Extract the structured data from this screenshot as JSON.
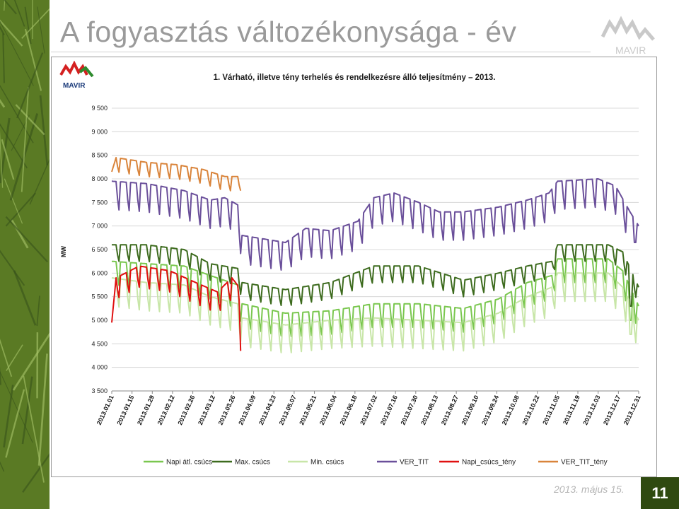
{
  "slide": {
    "title": "A fogyasztás változékonysága - év",
    "date": "2013. május 15.",
    "number": "11",
    "logo_text": "MAVIR"
  },
  "colors": {
    "panel_green": "#5a7a24",
    "napi_atl": "#7ac74f",
    "max": "#3d6b1e",
    "min": "#c8e6a8",
    "ver": "#6a4f9a",
    "napi_teny": "#e01010",
    "ver_teny": "#d9843b",
    "logo_red": "#d42020",
    "logo_green": "#2e8b2e"
  },
  "chart_data": {
    "type": "line",
    "title": "1. Várható, illetve tény terhelés és rendelkezésre álló teljesítmény – 2013.",
    "ylabel": "MW",
    "xlabel": "",
    "ylim": [
      3500,
      9500
    ],
    "yticks": [
      3500,
      4000,
      4500,
      5000,
      5500,
      6000,
      6500,
      7000,
      7500,
      8000,
      8500,
      9000,
      9500
    ],
    "ytick_labels": [
      "3 500",
      "4 000",
      "4 500",
      "5 000",
      "5 500",
      "6 000",
      "6 500",
      "7 000",
      "7 500",
      "8 000",
      "8 500",
      "9 000",
      "9 500"
    ],
    "x_start": "2013.01.01",
    "x_end": "2013.12.31",
    "xtick_labels": [
      "2013.01.01",
      "2013.01.15",
      "2013.01.29",
      "2013.02.12",
      "2013.02.26",
      "2013.03.12",
      "2013.03.26",
      "2013.04.09",
      "2013.04.23",
      "2013.05.07",
      "2013.05.21",
      "2013.06.04",
      "2013.06.18",
      "2013.07.02",
      "2013.07.16",
      "2013.07.30",
      "2013.08.13",
      "2013.08.27",
      "2013.09.10",
      "2013.09.24",
      "2013.10.08",
      "2013.10.22",
      "2013.11.05",
      "2013.11.19",
      "2013.12.03",
      "2013.12.17",
      "2013.12.31"
    ],
    "legend_position": "bottom",
    "grid": true,
    "series": [
      {
        "name": "Napi átl. csúcs",
        "color": "#7ac74f",
        "anchors": [
          [
            "2013.01.01",
            6250
          ],
          [
            "2013.01.25",
            6200
          ],
          [
            "2013.02.20",
            6150
          ],
          [
            "2013.03.10",
            5950
          ],
          [
            "2013.03.29",
            5750
          ],
          [
            "2013.04.01",
            5350
          ],
          [
            "2013.05.01",
            5150
          ],
          [
            "2013.06.01",
            5200
          ],
          [
            "2013.07.01",
            5350
          ],
          [
            "2013.08.01",
            5350
          ],
          [
            "2013.09.01",
            5250
          ],
          [
            "2013.09.25",
            5450
          ],
          [
            "2013.10.15",
            5800
          ],
          [
            "2013.11.01",
            5950
          ],
          [
            "2013.11.05",
            6300
          ],
          [
            "2013.12.10",
            6300
          ],
          [
            "2013.12.20",
            6050
          ],
          [
            "2013.12.31",
            5300
          ]
        ],
        "weekend_drop": 500,
        "holiday_dips": [
          [
            "2013.12.25",
            5000
          ],
          [
            "2013.12.26",
            5000
          ]
        ]
      },
      {
        "name": "Max. csúcs",
        "color": "#3d6b1e",
        "anchors": [
          [
            "2013.01.01",
            6600
          ],
          [
            "2013.01.25",
            6600
          ],
          [
            "2013.02.20",
            6500
          ],
          [
            "2013.03.10",
            6200
          ],
          [
            "2013.03.29",
            6100
          ],
          [
            "2013.04.01",
            5800
          ],
          [
            "2013.05.01",
            5650
          ],
          [
            "2013.06.01",
            5800
          ],
          [
            "2013.07.01",
            6150
          ],
          [
            "2013.08.01",
            6150
          ],
          [
            "2013.09.01",
            5850
          ],
          [
            "2013.09.25",
            6000
          ],
          [
            "2013.10.15",
            6150
          ],
          [
            "2013.11.01",
            6250
          ],
          [
            "2013.11.05",
            6600
          ],
          [
            "2013.12.10",
            6600
          ],
          [
            "2013.12.20",
            6450
          ],
          [
            "2013.12.31",
            5700
          ]
        ],
        "weekend_drop": 350,
        "holiday_dips": [
          [
            "2013.12.25",
            5300
          ],
          [
            "2013.12.26",
            5300
          ]
        ]
      },
      {
        "name": "Min. csúcs",
        "color": "#c8e6a8",
        "anchors": [
          [
            "2013.01.01",
            5900
          ],
          [
            "2013.01.25",
            5800
          ],
          [
            "2013.02.20",
            5750
          ],
          [
            "2013.03.10",
            5500
          ],
          [
            "2013.03.29",
            5350
          ],
          [
            "2013.04.01",
            5050
          ],
          [
            "2013.05.01",
            4900
          ],
          [
            "2013.06.01",
            5000
          ],
          [
            "2013.07.01",
            5050
          ],
          [
            "2013.08.01",
            5000
          ],
          [
            "2013.09.01",
            4950
          ],
          [
            "2013.09.25",
            5150
          ],
          [
            "2013.10.15",
            5500
          ],
          [
            "2013.11.01",
            5700
          ],
          [
            "2013.11.05",
            6000
          ],
          [
            "2013.12.10",
            6000
          ],
          [
            "2013.12.20",
            5700
          ],
          [
            "2013.12.31",
            5000
          ]
        ],
        "weekend_drop": 600,
        "holiday_dips": [
          [
            "2013.12.25",
            4700
          ],
          [
            "2013.12.26",
            4700
          ]
        ]
      },
      {
        "name": "VER_TIT",
        "color": "#6a4f9a",
        "anchors": [
          [
            "2013.01.01",
            7950
          ],
          [
            "2013.01.25",
            7900
          ],
          [
            "2013.02.20",
            7750
          ],
          [
            "2013.03.10",
            7550
          ],
          [
            "2013.03.20",
            7600
          ],
          [
            "2013.03.29",
            7450
          ],
          [
            "2013.04.01",
            6800
          ],
          [
            "2013.05.01",
            6650
          ],
          [
            "2013.05.15",
            6950
          ],
          [
            "2013.06.01",
            6900
          ],
          [
            "2013.06.20",
            7100
          ],
          [
            "2013.07.01",
            7600
          ],
          [
            "2013.07.15",
            7700
          ],
          [
            "2013.08.01",
            7500
          ],
          [
            "2013.08.15",
            7300
          ],
          [
            "2013.09.01",
            7300
          ],
          [
            "2013.09.25",
            7400
          ],
          [
            "2013.10.15",
            7550
          ],
          [
            "2013.10.30",
            7700
          ],
          [
            "2013.11.05",
            7950
          ],
          [
            "2013.12.03",
            8000
          ],
          [
            "2013.12.15",
            7850
          ],
          [
            "2013.12.25",
            7300
          ],
          [
            "2013.12.31",
            7000
          ]
        ],
        "weekend_drop": 600,
        "holiday_dips": [
          [
            "2013.12.28",
            6650
          ],
          [
            "2013.12.29",
            6650
          ]
        ]
      },
      {
        "name": "Napi_csúcs_tény",
        "color": "#e01010",
        "anchors": [
          [
            "2013.01.01",
            4950
          ],
          [
            "2013.01.04",
            5900
          ],
          [
            "2013.01.20",
            6150
          ],
          [
            "2013.02.10",
            6050
          ],
          [
            "2013.02.28",
            5800
          ],
          [
            "2013.03.15",
            5600
          ],
          [
            "2013.03.25",
            5900
          ],
          [
            "2013.03.30",
            5700
          ],
          [
            "2013.03.31",
            4800
          ]
        ],
        "weekend_drop": 450,
        "holiday_dips": []
      },
      {
        "name": "VER_TIT_tény",
        "color": "#d9843b",
        "anchors": [
          [
            "2013.01.01",
            8150
          ],
          [
            "2013.01.04",
            8450
          ],
          [
            "2013.01.25",
            8350
          ],
          [
            "2013.02.15",
            8300
          ],
          [
            "2013.03.05",
            8200
          ],
          [
            "2013.03.20",
            8050
          ],
          [
            "2013.03.31",
            8050
          ]
        ],
        "weekend_drop": 300,
        "holiday_dips": []
      }
    ]
  }
}
